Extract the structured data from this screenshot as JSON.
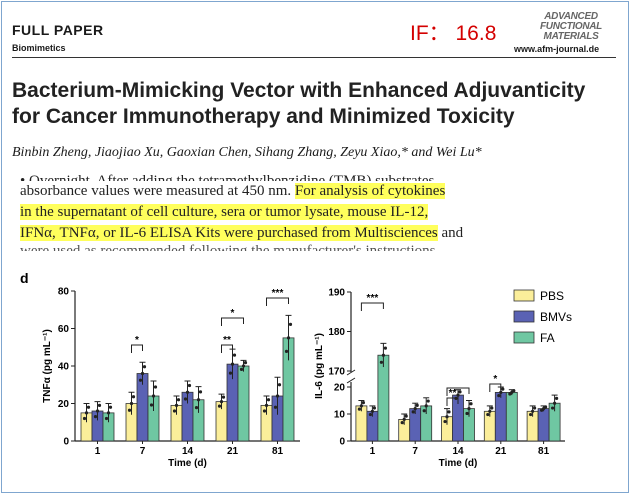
{
  "header": {
    "full_paper": "FULL PAPER",
    "section": "Biomimetics",
    "impact_factor": "IF： 16.8",
    "journal_logo": [
      "ADVANCED",
      "FUNCTIONAL",
      "MATERIALS"
    ],
    "url": "www.afm-journal.de"
  },
  "title_lines": [
    "Bacterium-Mimicking Vector with Enhanced Adjuvanticity",
    "for Cancer Immunotherapy and Minimized Toxicity"
  ],
  "authors": "Binbin Zheng, Jiaojiao Xu, Gaoxian Chen, Sihang Zhang, Zeyu Xiao,* and Wei Lu*",
  "body": {
    "cut_top": "• Overnight. After adding the tetramethylbenzidine (TMB) substrates,",
    "line1_plain": "absorbance values were measured at 450 nm. ",
    "line1_hl": "For analysis of cytokines",
    "line2_hl": "in the supernatant of cell culture, sera or tumor lysate, mouse IL-12,",
    "line3_hl": "IFNα, TNFα, or IL-6 ELISA Kits were purchased from Multisciences",
    "line3_plain": " and",
    "cut_bottom": "were used as recommended following the manufacturer's instructions."
  },
  "figure": {
    "panel_label": "d",
    "colors": {
      "PBS": "#fbee9a",
      "BMVs": "#5a62b4",
      "FA": "#6fc7a2"
    },
    "legend": [
      "PBS",
      "BMVs",
      "FA"
    ],
    "left": {
      "ylabel": "TNFα (pg mL⁻¹)",
      "xlabel": "Time (d)",
      "yticks": [
        "0",
        "20",
        "40",
        "60",
        "80"
      ],
      "ylim": [
        0,
        80
      ],
      "categories": [
        "1",
        "7",
        "14",
        "21",
        "81"
      ],
      "values": {
        "PBS": [
          15,
          20,
          19,
          21,
          19
        ],
        "BMVs": [
          16,
          36,
          26,
          41,
          24
        ],
        "FA": [
          15,
          24,
          22,
          40,
          55
        ]
      },
      "errors": {
        "PBS": [
          5,
          6,
          5,
          4,
          5
        ],
        "BMVs": [
          5,
          6,
          6,
          8,
          10
        ],
        "FA": [
          5,
          8,
          7,
          3,
          12
        ]
      },
      "significance": [
        {
          "group": 1,
          "label": "*"
        },
        {
          "group": 3,
          "label": "**"
        },
        {
          "group": 3,
          "label": "*"
        },
        {
          "group": 4,
          "label": "***"
        }
      ]
    },
    "right": {
      "ylabel": "IL-6 (pg mL⁻¹)",
      "xlabel": "Time (d)",
      "yticks": [
        "0",
        "10",
        "20",
        "170",
        "180",
        "190"
      ],
      "categories": [
        "1",
        "7",
        "14",
        "21",
        "81"
      ],
      "values": {
        "PBS": [
          13,
          8,
          9,
          11,
          11
        ],
        "BMVs": [
          11,
          12,
          17,
          18,
          12
        ],
        "FA": [
          174,
          13,
          12,
          18,
          14
        ]
      },
      "errors": {
        "PBS": [
          2,
          2,
          3,
          2,
          2
        ],
        "BMVs": [
          2,
          2,
          2,
          2,
          1
        ],
        "FA": [
          3,
          3,
          3,
          1,
          3
        ]
      },
      "significance": [
        {
          "group": 0,
          "label": "***"
        },
        {
          "group": 2,
          "label": "**"
        },
        {
          "group": 3,
          "label": "*"
        }
      ]
    }
  }
}
